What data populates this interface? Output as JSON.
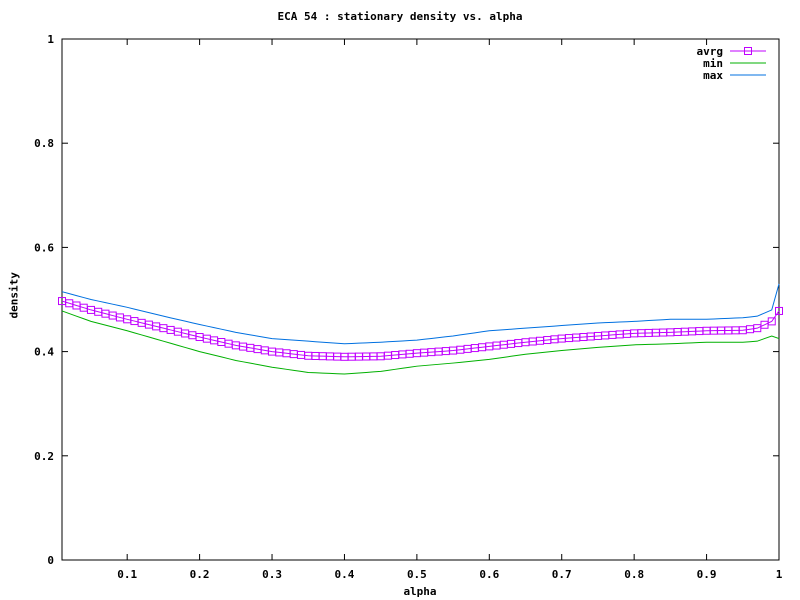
{
  "chart_data": {
    "type": "line",
    "title": "ECA 54 : stationary density vs. alpha",
    "xlabel": "alpha",
    "ylabel": "density",
    "xlim": [
      0.01,
      1.0
    ],
    "ylim": [
      0,
      1
    ],
    "xticks": [
      "0.1",
      "0.2",
      "0.3",
      "0.4",
      "0.5",
      "0.6",
      "0.7",
      "0.8",
      "0.9",
      "1"
    ],
    "yticks": [
      "0",
      "0.2",
      "0.4",
      "0.6",
      "0.8",
      "1"
    ],
    "grid": false,
    "legend_position": "top-right",
    "x": [
      0.01,
      0.05,
      0.1,
      0.15,
      0.2,
      0.25,
      0.3,
      0.35,
      0.4,
      0.45,
      0.5,
      0.55,
      0.6,
      0.65,
      0.7,
      0.75,
      0.8,
      0.85,
      0.9,
      0.95,
      0.97,
      0.99,
      1.0
    ],
    "series": [
      {
        "name": "avrg",
        "color": "#c000ff",
        "marker": "square",
        "values": [
          0.497,
          0.48,
          0.462,
          0.445,
          0.428,
          0.412,
          0.4,
          0.392,
          0.39,
          0.391,
          0.397,
          0.402,
          0.41,
          0.418,
          0.425,
          0.43,
          0.435,
          0.437,
          0.44,
          0.441,
          0.445,
          0.458,
          0.478
        ]
      },
      {
        "name": "min",
        "color": "#00b000",
        "marker": "none",
        "values": [
          0.478,
          0.458,
          0.44,
          0.42,
          0.4,
          0.383,
          0.37,
          0.36,
          0.357,
          0.362,
          0.372,
          0.378,
          0.385,
          0.395,
          0.402,
          0.408,
          0.413,
          0.415,
          0.418,
          0.418,
          0.42,
          0.43,
          0.425
        ]
      },
      {
        "name": "max",
        "color": "#0070e0",
        "marker": "none",
        "values": [
          0.515,
          0.5,
          0.485,
          0.468,
          0.452,
          0.437,
          0.425,
          0.42,
          0.415,
          0.418,
          0.422,
          0.43,
          0.44,
          0.445,
          0.45,
          0.455,
          0.458,
          0.462,
          0.462,
          0.465,
          0.468,
          0.48,
          0.53
        ]
      }
    ]
  },
  "legend": {
    "items": [
      {
        "label": "avrg",
        "color": "#c000ff"
      },
      {
        "label": "min",
        "color": "#00b000"
      },
      {
        "label": "max",
        "color": "#0070e0"
      }
    ]
  }
}
